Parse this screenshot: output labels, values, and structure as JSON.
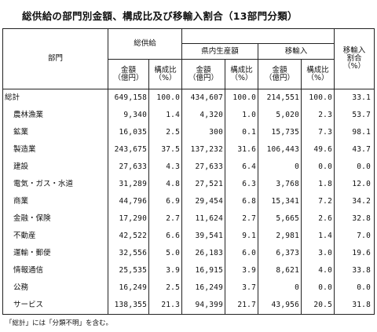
{
  "title": "総供給の部門別金額、構成比及び移輸入割合（13部門分類）",
  "headers": {
    "sector": "部門",
    "total_supply": "総供給",
    "domestic": "県内生産額",
    "imports": "移輸入",
    "import_ratio_line1": "移輸入",
    "import_ratio_line2": "割合",
    "import_ratio_line3": "（%）",
    "amount_line1": "金額",
    "amount_line2": "（億円）",
    "share_line1": "構成比",
    "share_line2": "（%）"
  },
  "rows": [
    {
      "label": "総計",
      "supply_amount": "649,158",
      "supply_share": "100.0",
      "domestic_amount": "434,607",
      "domestic_share": "100.0",
      "import_amount": "214,551",
      "import_share": "100.0",
      "import_ratio": "33.1"
    },
    {
      "label": "農林漁業",
      "supply_amount": "9,340",
      "supply_share": "1.4",
      "domestic_amount": "4,320",
      "domestic_share": "1.0",
      "import_amount": "5,020",
      "import_share": "2.3",
      "import_ratio": "53.7"
    },
    {
      "label": "鉱業",
      "supply_amount": "16,035",
      "supply_share": "2.5",
      "domestic_amount": "300",
      "domestic_share": "0.1",
      "import_amount": "15,735",
      "import_share": "7.3",
      "import_ratio": "98.1"
    },
    {
      "label": "製造業",
      "supply_amount": "243,675",
      "supply_share": "37.5",
      "domestic_amount": "137,232",
      "domestic_share": "31.6",
      "import_amount": "106,443",
      "import_share": "49.6",
      "import_ratio": "43.7"
    },
    {
      "label": "建設",
      "supply_amount": "27,633",
      "supply_share": "4.3",
      "domestic_amount": "27,633",
      "domestic_share": "6.4",
      "import_amount": "0",
      "import_share": "0.0",
      "import_ratio": "0.0"
    },
    {
      "label": "電気・ガス・水道",
      "supply_amount": "31,289",
      "supply_share": "4.8",
      "domestic_amount": "27,521",
      "domestic_share": "6.3",
      "import_amount": "3,768",
      "import_share": "1.8",
      "import_ratio": "12.0"
    },
    {
      "label": "商業",
      "supply_amount": "44,796",
      "supply_share": "6.9",
      "domestic_amount": "29,454",
      "domestic_share": "6.8",
      "import_amount": "15,341",
      "import_share": "7.2",
      "import_ratio": "34.2"
    },
    {
      "label": "金融・保険",
      "supply_amount": "17,290",
      "supply_share": "2.7",
      "domestic_amount": "11,624",
      "domestic_share": "2.7",
      "import_amount": "5,665",
      "import_share": "2.6",
      "import_ratio": "32.8"
    },
    {
      "label": "不動産",
      "supply_amount": "42,522",
      "supply_share": "6.6",
      "domestic_amount": "39,541",
      "domestic_share": "9.1",
      "import_amount": "2,981",
      "import_share": "1.4",
      "import_ratio": "7.0"
    },
    {
      "label": "運輸・郵便",
      "supply_amount": "32,556",
      "supply_share": "5.0",
      "domestic_amount": "26,183",
      "domestic_share": "6.0",
      "import_amount": "6,373",
      "import_share": "3.0",
      "import_ratio": "19.6"
    },
    {
      "label": "情報通信",
      "supply_amount": "25,535",
      "supply_share": "3.9",
      "domestic_amount": "16,915",
      "domestic_share": "3.9",
      "import_amount": "8,621",
      "import_share": "4.0",
      "import_ratio": "33.8"
    },
    {
      "label": "公務",
      "supply_amount": "16,249",
      "supply_share": "2.5",
      "domestic_amount": "16,249",
      "domestic_share": "3.7",
      "import_amount": "0",
      "import_share": "0.0",
      "import_ratio": "0.0"
    },
    {
      "label": "サービス",
      "supply_amount": "138,355",
      "supply_share": "21.3",
      "domestic_amount": "94,399",
      "domestic_share": "21.7",
      "import_amount": "43,956",
      "import_share": "20.5",
      "import_ratio": "31.8"
    }
  ],
  "note": "「総計」には「分類不明」を含む。"
}
